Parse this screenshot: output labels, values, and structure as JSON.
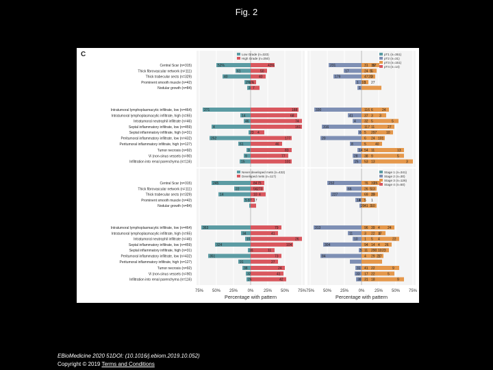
{
  "page_title": "Fig. 2",
  "panel_letter": "C",
  "footer": {
    "citation": "EBioMedicine 2020 51DOI: (10.1016/j.ebiom.2019.10.052)",
    "copyright": "Copyright © 2019",
    "terms_link": "Terms and Conditions"
  },
  "colors": {
    "teal": "#5b9ba3",
    "red": "#d9575e",
    "blue": "#7e8fb4",
    "orange": "#e5984b",
    "panel_bg": "#f4f4f4",
    "grid": "#ffffff"
  },
  "chart_data": {
    "type": "bar",
    "xlabel": "Percentage with pattern",
    "xticks": [
      "75%",
      "50%",
      "25%",
      "0%",
      "25%",
      "50%",
      "75%"
    ],
    "xlim": [
      -75,
      75
    ],
    "row_groups": [
      [
        "Central Scar (n=315)",
        "Thick fibrovascular network (n=111)",
        "Thick trabecular sects (n=329)",
        "Prominent smooth muscle (n=42)",
        "Nodular growth (n=84)"
      ],
      [
        "Intratumoral lymphoplasmacytic infiltrate, low (n=464)",
        "Intratumoral lymphoplasmacytic infiltrate, high (n=65)",
        "Intratumoral neutrophil infiltrate (n=46)",
        "Septal inflammatory infiltrate, low (n=459)",
        "Septal inflammatory infiltrate, high (n=31)",
        "Peritumoral inflammatory infiltrate, low (n=432)",
        "Peritumoral inflammatory infiltrate, high (n=127)"
      ],
      [
        "Tumor necrosis (n=92)",
        "Vi (non-sinus vessels (n=90)",
        "Infiltration into renal parenchyma (n=116)"
      ]
    ],
    "panels": [
      {
        "legend": [
          "Low Grade (n=323)",
          "High Grade (n=250)"
        ],
        "values": [
          [
            [
              -50,
              35
            ],
            [
              -22,
              24
            ],
            [
              -41,
              22
            ],
            [
              -9,
              8
            ],
            [
              -5,
              13
            ]
          ],
          [
            [
              -70,
              70
            ],
            [
              -15,
              68
            ],
            [
              -10,
              75
            ],
            [
              -57,
              75
            ],
            [
              -3,
              20
            ],
            [
              -60,
              60
            ],
            [
              -18,
              46
            ]
          ],
          [
            [
              -6,
              60
            ],
            [
              -10,
              55
            ],
            [
              -16,
              60
            ]
          ]
        ],
        "labels": [
          [
            "52%",
            "43%",
            "61",
            "50",
            "40",
            "40",
            "2%",
            "1%",
            "3",
            "7"
          ],
          [
            "271",
            "188",
            "14",
            "68",
            "46",
            "74",
            "4",
            "161",
            "23",
            "4",
            "252",
            "177",
            "61",
            "46"
          ],
          [
            "9",
            "83",
            "9",
            "77",
            "15",
            "101"
          ]
        ]
      },
      {
        "legend": [
          "pT1 (n=351)",
          "pT2 (n=31)",
          "pT3 (n=151)",
          "pT4 (n=14)"
        ],
        "values": [
          [
            [
              -48,
              26
            ],
            [
              -26,
              22
            ],
            [
              -41,
              20
            ],
            [
              -9,
              10
            ],
            [
              -6,
              29
            ]
          ],
          [
            [
              -69,
              40
            ],
            [
              -20,
              36
            ],
            [
              -13,
              54
            ],
            [
              -58,
              48
            ],
            [
              -5,
              46
            ],
            [
              -60,
              34
            ],
            [
              -17,
              30
            ]
          ],
          [
            [
              -6,
              62
            ],
            [
              -13,
              62
            ],
            [
              -12,
              75
            ]
          ]
        ],
        "labels": [
          [
            "231",
            "57",
            "31",
            "10",
            "17",
            "5",
            "24",
            "5",
            "179",
            "20",
            "47",
            "3",
            "1",
            "10",
            "1",
            "27",
            "1"
          ],
          [
            "330",
            "24",
            "116",
            "6",
            "41",
            "3",
            "37",
            "3",
            "4",
            "5",
            "32",
            "5",
            "316",
            "27",
            "117",
            "11",
            "6",
            "10",
            "5",
            "297",
            "20",
            "101",
            "6",
            "24",
            "8",
            "40",
            "5"
          ],
          [
            "14",
            "13",
            "54",
            "11",
            "28",
            "5",
            "38",
            "9",
            "25",
            "3",
            "53",
            "13"
          ]
        ]
      },
      {
        "legend": [
          "Never developed mets (n=432)",
          "Developed mets (n=117)"
        ],
        "values": [
          [
            [
              -57,
              20
            ],
            [
              -24,
              19
            ],
            [
              -47,
              22
            ],
            [
              -10,
              6
            ],
            [
              -2,
              8
            ]
          ],
          [
            [
              -72,
              45
            ],
            [
              -14,
              40
            ],
            [
              -8,
              75
            ],
            [
              -52,
              62
            ],
            [
              -4,
              35
            ],
            [
              -62,
              45
            ],
            [
              -18,
              40
            ]
          ],
          [
            [
              -12,
              50
            ],
            [
              -7,
              48
            ],
            [
              -6,
              52
            ]
          ]
        ],
        "labels": [
          [
            "245",
            "75",
            "84",
            "22",
            "273",
            "56",
            "14",
            "4",
            "10",
            "5",
            "87",
            "17"
          ],
          [
            "363",
            "79",
            "34",
            "41",
            "15",
            "26",
            "324",
            "104",
            "16",
            "11",
            "351",
            "73",
            "91",
            "27"
          ],
          [
            "38",
            "24",
            "32",
            "41",
            "26",
            "42"
          ]
        ]
      },
      {
        "legend": [
          "Stage 1 (n=341)",
          "Stage 2 (n=30)",
          "Stage 3 (n=126)",
          "Stage 4 (n=50)"
        ],
        "values": [
          [
            [
              -50,
              28
            ],
            [
              -22,
              22
            ],
            [
              -45,
              24
            ],
            [
              -9,
              6
            ],
            [
              -3,
              22
            ]
          ],
          [
            [
              -70,
              48
            ],
            [
              -20,
              35
            ],
            [
              -13,
              55
            ],
            [
              -56,
              44
            ],
            [
              -4,
              40
            ],
            [
              -60,
              32
            ],
            [
              -17,
              30
            ]
          ],
          [
            [
              -9,
              55
            ],
            [
              -10,
              48
            ],
            [
              -8,
              62
            ]
          ]
        ],
        "labels": [
          [
            "232",
            "26",
            "76",
            "33",
            "66",
            "5",
            "26",
            "13",
            "227",
            "20",
            "69",
            "13",
            "14",
            "3",
            "5",
            "1",
            "20",
            "3",
            "41",
            "10"
          ],
          [
            "313",
            "24",
            "96",
            "39",
            "4",
            "11",
            "4",
            "3",
            "22",
            "17",
            "10",
            "22",
            "1",
            "5",
            "4",
            "304",
            "26",
            "94",
            "14",
            "4",
            "5",
            "23",
            "11",
            "290",
            "10",
            "84",
            "21",
            "4",
            "29",
            "27"
          ],
          [
            "31",
            "9",
            "41",
            "22",
            "33",
            "5",
            "17",
            "22",
            "38",
            "9",
            "31",
            "18"
          ]
        ]
      }
    ]
  }
}
